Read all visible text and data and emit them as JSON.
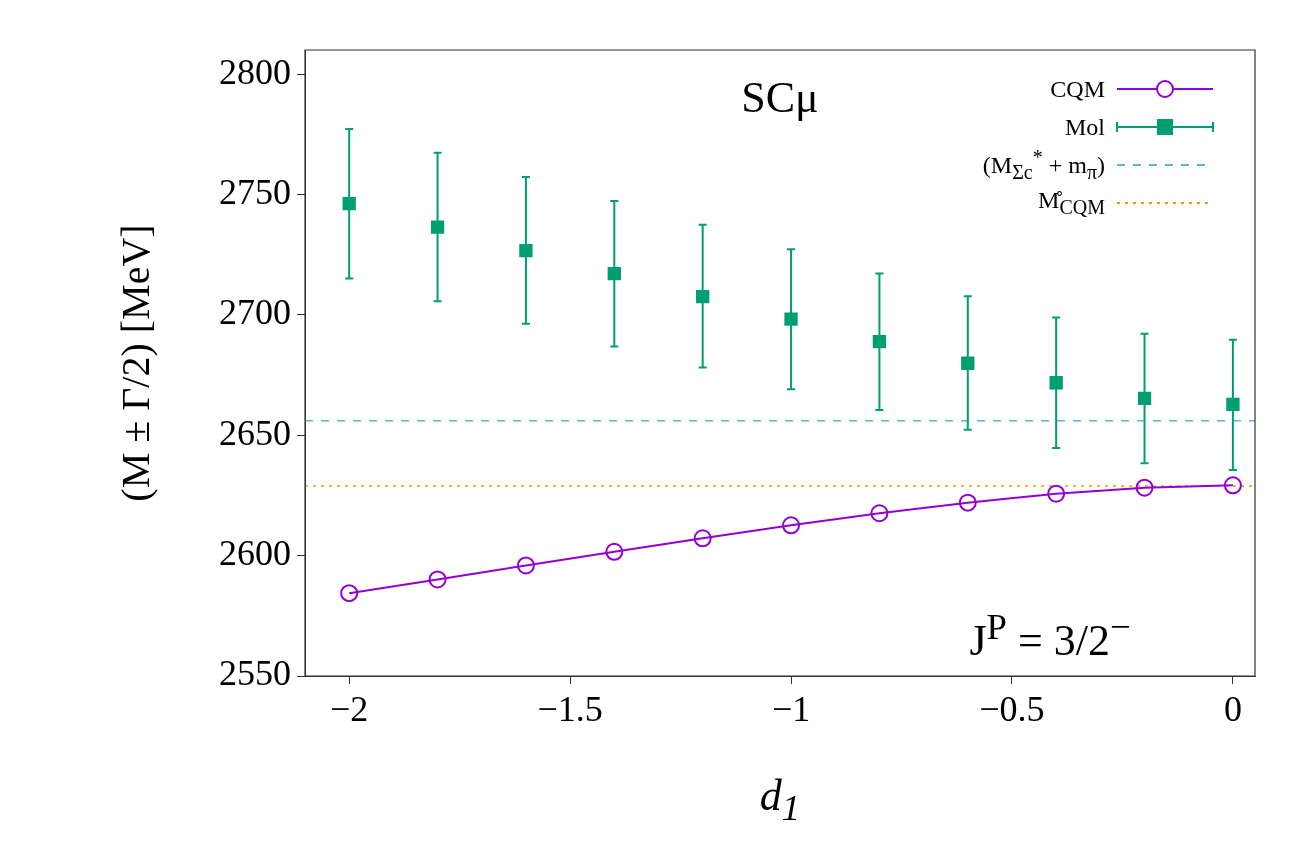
{
  "chart_data": {
    "type": "line",
    "xlabel": "d$_{1}$",
    "ylabel": "(M ± Γ/2) [MeV]",
    "annotations": [
      "SCμ",
      "J$^{P}$ = 3/2$^{−}$"
    ],
    "xlim": [
      -2.1,
      0.05
    ],
    "xticks": [
      {
        "value": -2,
        "label": "−2"
      },
      {
        "value": -1.5,
        "label": "−1.5"
      },
      {
        "value": -1,
        "label": "−1"
      },
      {
        "value": -0.5,
        "label": "−0.5"
      },
      {
        "value": 0,
        "label": "0"
      }
    ],
    "ylim": [
      2550,
      2810
    ],
    "yticks": [
      2550,
      2600,
      2650,
      2700,
      2750,
      2800
    ],
    "legend": "top right",
    "series": [
      {
        "name": "CQM",
        "type": "line",
        "color": "#9400d3",
        "marker": "circle",
        "x": [
          -2,
          -1.8,
          -1.6,
          -1.4,
          -1.2,
          -1,
          -0.8,
          -0.6,
          -0.4,
          -0.2,
          0
        ],
        "values": [
          2584.4,
          2590.1,
          2595.9,
          2601.6,
          2607.2,
          2612.6,
          2617.6,
          2622,
          2625.7,
          2628.2,
          2629.2
        ]
      },
      {
        "name": "Mol",
        "type": "scatter",
        "color": "#009e73",
        "marker": "square",
        "x": [
          -2,
          -1.8,
          -1.6,
          -1.4,
          -1.2,
          -1,
          -0.8,
          -0.6,
          -0.4,
          -0.2,
          0
        ],
        "values": [
          2746.2,
          2736.4,
          2726.7,
          2717.1,
          2707.6,
          2698.2,
          2688.9,
          2679.9,
          2671.8,
          2665.3,
          2662.8
        ],
        "errors": [
          [
            2715.1,
            2777.2
          ],
          [
            2705.6,
            2767.3
          ],
          [
            2696.3,
            2757.3
          ],
          [
            2686.9,
            2747.3
          ],
          [
            2678.1,
            2737.4
          ],
          [
            2669.1,
            2727.2
          ],
          [
            2660.5,
            2717.2
          ],
          [
            2652.3,
            2707.7
          ],
          [
            2644.7,
            2698.9
          ],
          [
            2638.4,
            2692.2
          ],
          [
            2635.6,
            2689.7
          ]
        ]
      }
    ],
    "ref_lines": [
      {
        "axis": "y",
        "value": 2656,
        "label": "(M$_{Σ}$$_{c}$$^{*}$ + m$_{π}$)",
        "color": "#56b4e9",
        "line_style": "dashed"
      },
      {
        "axis": "y",
        "value": 2628.9,
        "label": "M̊$_{CQM}$",
        "color": "#e69f00",
        "line_style": "dotted"
      }
    ]
  }
}
